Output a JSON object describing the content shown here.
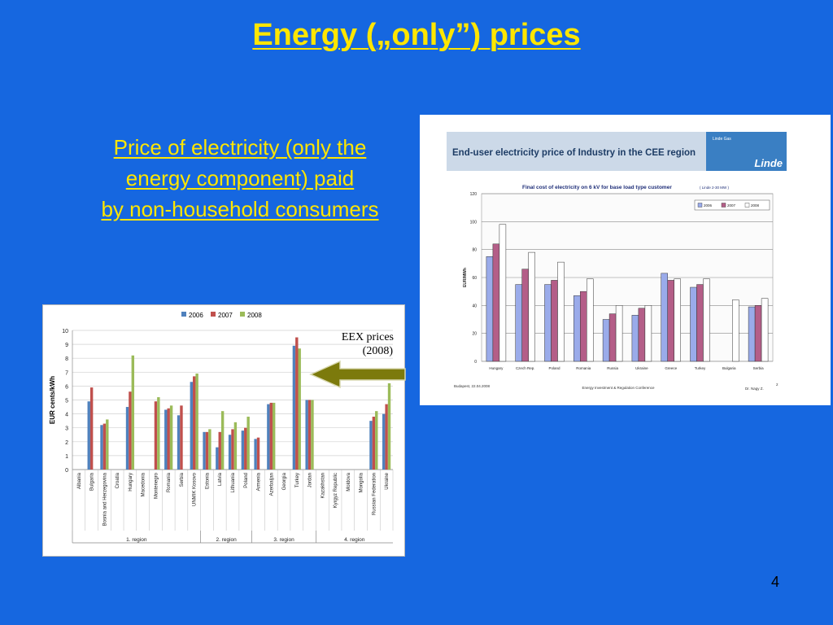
{
  "slide": {
    "title": "Energy („only”) prices",
    "subtitle_lines": [
      "Price of electricity (only the",
      "energy component) paid",
      "by non-household consumers"
    ],
    "annotation_lines": [
      "EEX prices",
      "(2008)"
    ],
    "page_number": "4"
  },
  "colors": {
    "bg": "#1667e0",
    "title": "#ffe600",
    "arrow": "#7c7a0c"
  },
  "chart_data": [
    {
      "type": "bar",
      "ylabel": "EUR cents/kWh",
      "ylim": [
        0,
        10
      ],
      "yticks": [
        0,
        1,
        2,
        3,
        4,
        5,
        6,
        7,
        8,
        9,
        10
      ],
      "grid": true,
      "legend": "top",
      "categories": [
        "Albania",
        "Bulgaria",
        "Bosnia and Herzegovina",
        "Croatia",
        "Hungary",
        "Macedonia",
        "Montenegro",
        "Romania",
        "Serbia",
        "UNMIK Kosovo",
        "Estonia",
        "Latvia",
        "Lithuania",
        "Poland",
        "Armenia",
        "Azerbaijan",
        "Georgia",
        "Turkey",
        "Jordan",
        "Kazakhstan",
        "Kyrgyz Republic",
        "Moldova",
        "Mongolia",
        "Russian Federation",
        "Ukraine"
      ],
      "series": [
        {
          "name": "2006",
          "color": "#4f81bd",
          "values": [
            null,
            4.9,
            3.2,
            null,
            4.5,
            null,
            null,
            4.3,
            3.9,
            6.3,
            2.7,
            1.6,
            2.5,
            2.8,
            2.2,
            4.7,
            null,
            8.9,
            5.0,
            null,
            null,
            null,
            null,
            3.5,
            4.0
          ]
        },
        {
          "name": "2007",
          "color": "#c0504d",
          "values": [
            null,
            5.9,
            3.3,
            null,
            5.6,
            null,
            4.9,
            4.4,
            4.6,
            6.7,
            2.7,
            2.7,
            2.9,
            3.0,
            2.3,
            4.8,
            null,
            9.5,
            5.0,
            null,
            null,
            null,
            null,
            3.8,
            4.7
          ]
        },
        {
          "name": "2008",
          "color": "#9bbb59",
          "values": [
            null,
            null,
            3.6,
            null,
            8.2,
            null,
            5.2,
            4.6,
            null,
            6.9,
            2.9,
            4.2,
            3.4,
            3.8,
            null,
            4.8,
            null,
            8.7,
            5.0,
            null,
            null,
            null,
            null,
            4.2,
            6.2
          ]
        }
      ],
      "groups": [
        {
          "label": "1. region",
          "from": 0,
          "to": 9
        },
        {
          "label": "2. region",
          "from": 10,
          "to": 13
        },
        {
          "label": "3. region",
          "from": 14,
          "to": 18
        },
        {
          "label": "4. region",
          "from": 19,
          "to": 24
        }
      ]
    },
    {
      "type": "bar",
      "header": "End-user electricity price of Industry in the CEE region",
      "brand": "Linde",
      "brand_small": "Linde Gas",
      "title": "Final cost of electricity on 6 kV for base load type customer",
      "title_note": "( Linde 2-30 MW )",
      "ylabel": "EUR/MWh",
      "ylim": [
        0,
        120
      ],
      "yticks": [
        0,
        20,
        40,
        60,
        80,
        100,
        120
      ],
      "grid": true,
      "legend": "top-right",
      "categories": [
        "Hungary",
        "Czech Rep.",
        "Poland",
        "Romania",
        "Russia",
        "Ukraine",
        "Greece",
        "Turkey",
        "Bulgaria",
        "Serbia"
      ],
      "series": [
        {
          "name": "2006",
          "color": "#9aabea",
          "values": [
            75,
            55,
            55,
            47,
            30,
            33,
            63,
            53,
            null,
            39
          ]
        },
        {
          "name": "2007",
          "color": "#b45e88",
          "values": [
            84,
            66,
            58,
            50,
            34,
            38,
            58,
            55,
            null,
            40
          ]
        },
        {
          "name": "2008",
          "color": "#ffffff",
          "values": [
            98,
            78,
            71,
            59,
            40,
            40,
            59,
            59,
            44,
            45
          ]
        }
      ],
      "footer_left": "Budapest, 22.04.2008",
      "footer_center": "Energy Investment & Regulation Conference",
      "footer_right": "Dr. Nagy Z.",
      "footer_page": "2"
    }
  ]
}
